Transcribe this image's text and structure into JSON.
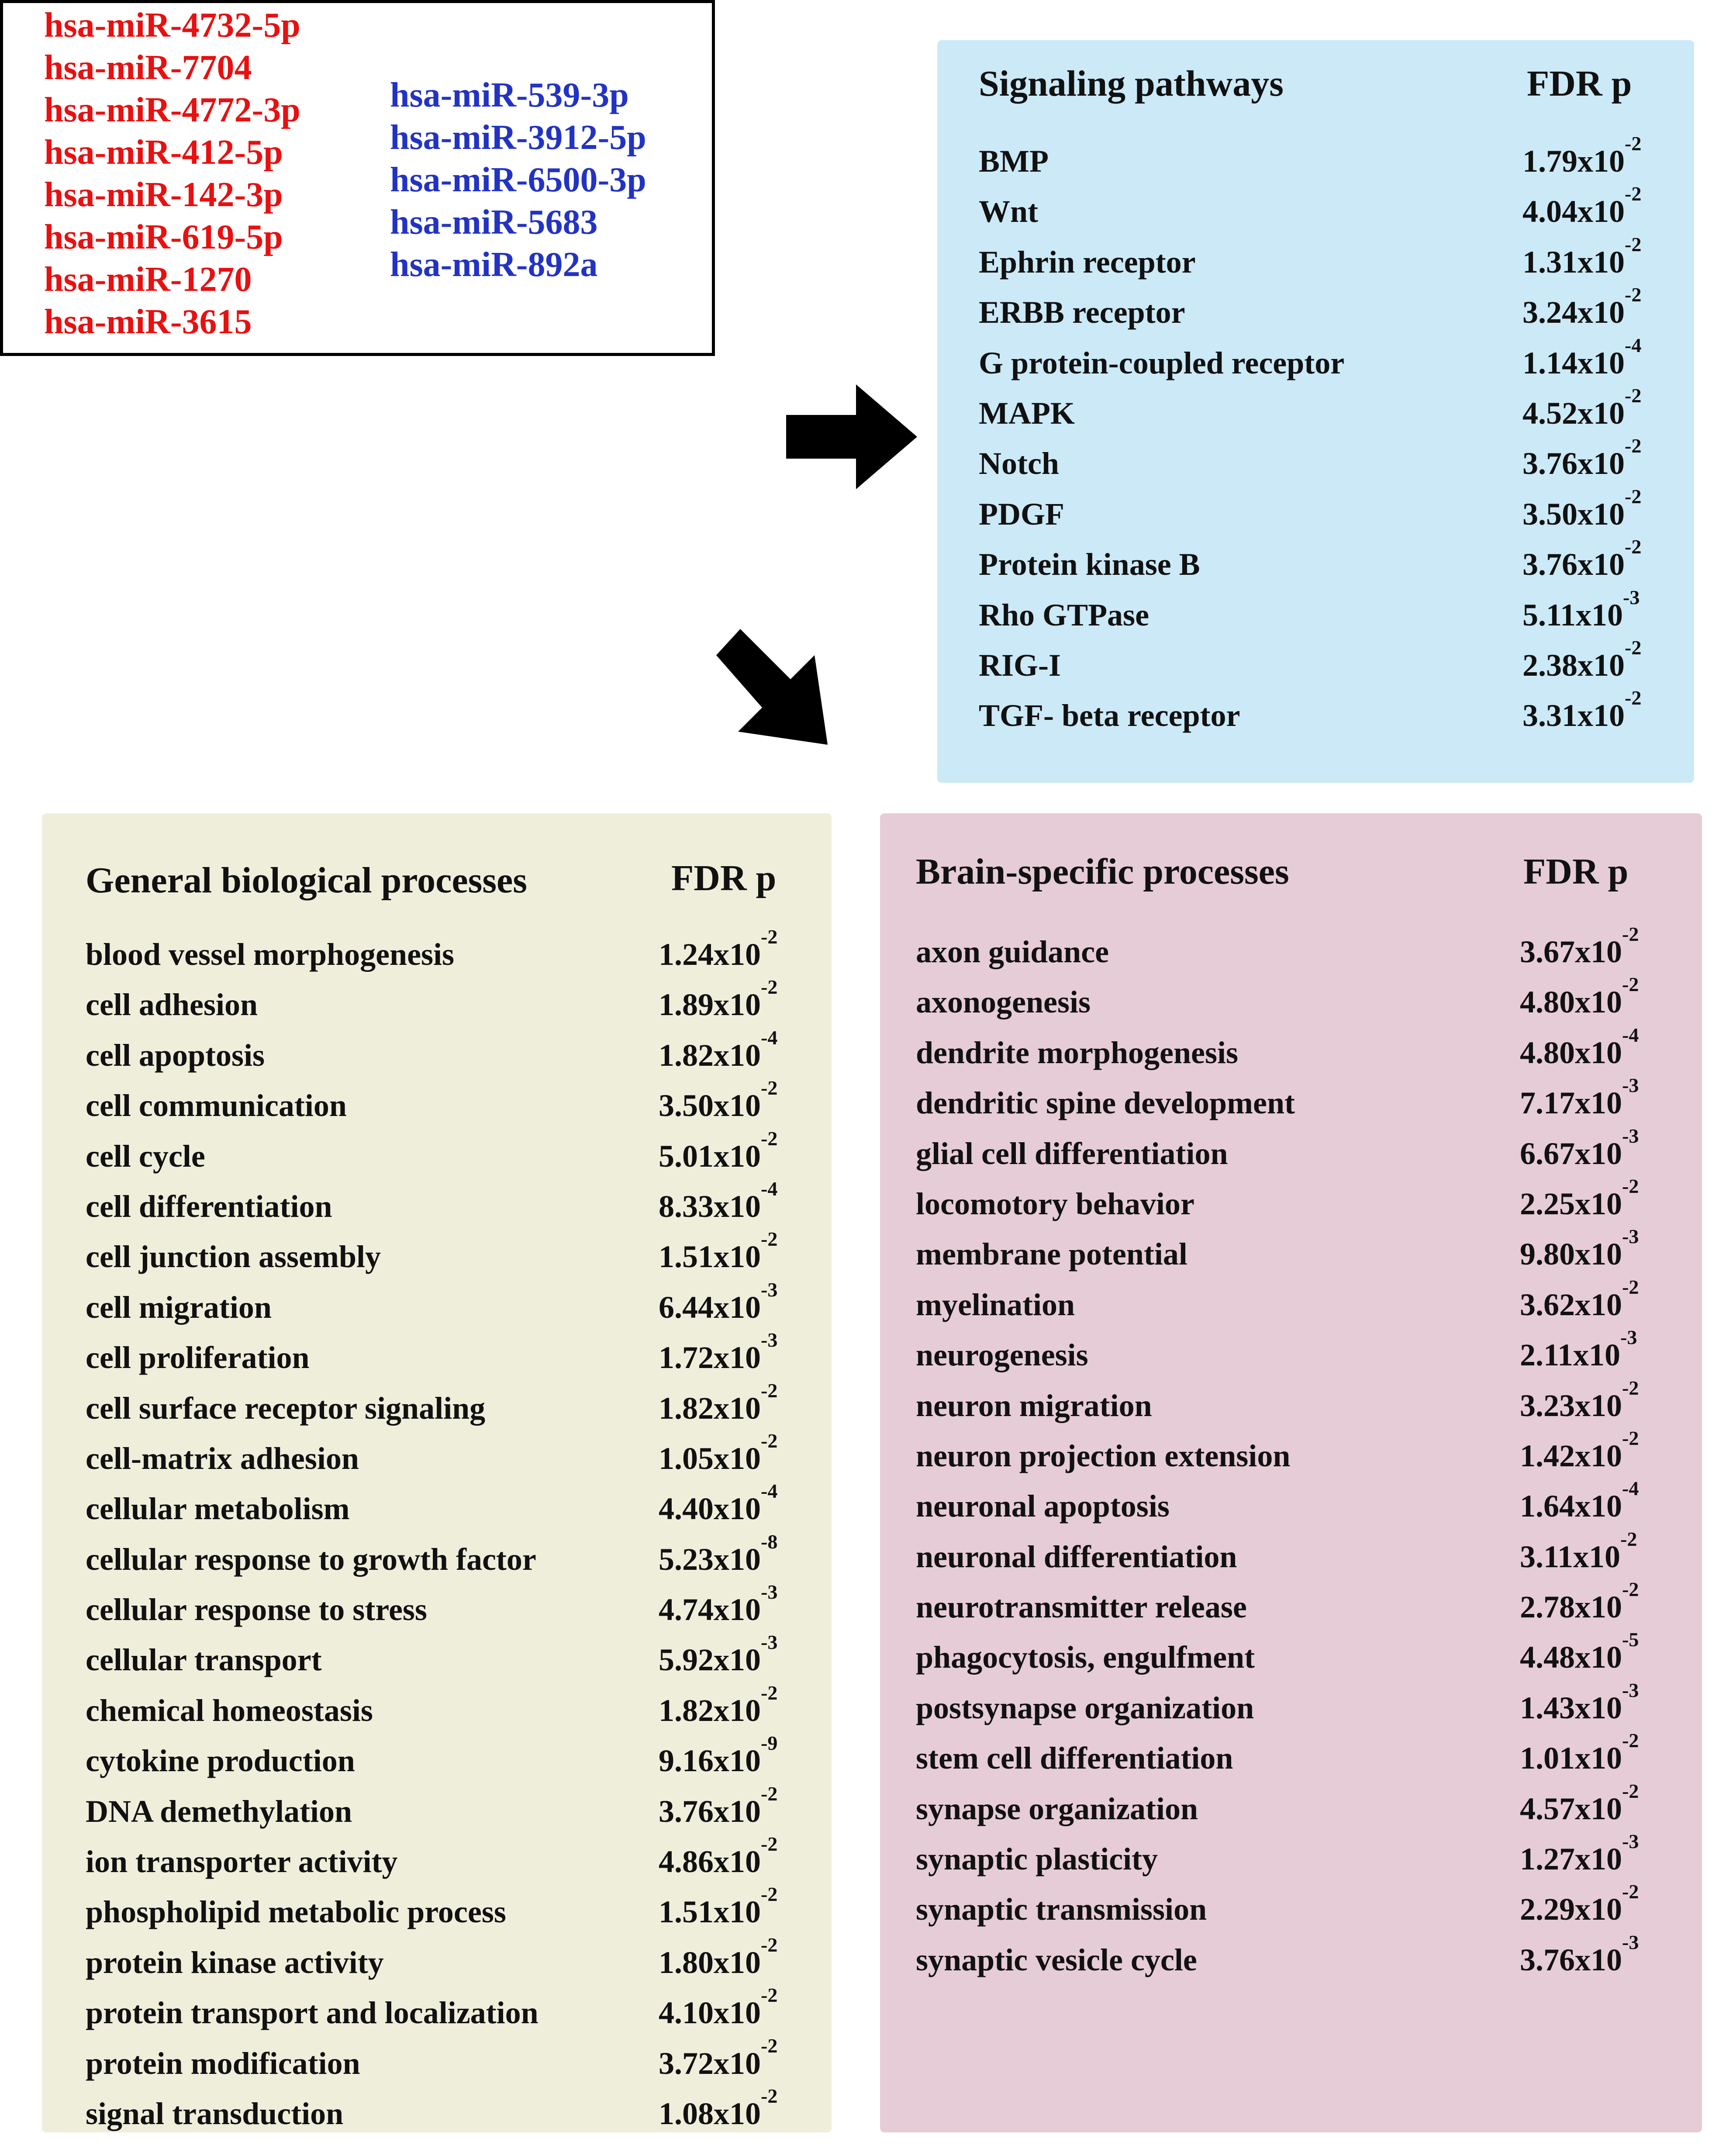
{
  "mirnas": {
    "red": [
      "hsa-miR-4732-5p",
      "hsa-miR-7704",
      "hsa-miR-4772-3p",
      "hsa-miR-412-5p",
      "hsa-miR-142-3p",
      "hsa-miR-619-5p",
      "hsa-miR-1270",
      "hsa-miR-3615"
    ],
    "blue": [
      "hsa-miR-539-3p",
      "hsa-miR-3912-5p",
      "hsa-miR-6500-3p",
      "hsa-miR-5683",
      "hsa-miR-892a"
    ],
    "red_color": "#e81010",
    "blue_color": "#2233c4"
  },
  "signaling": {
    "title": "Signaling pathways",
    "fdr_header": "FDR p",
    "color": "#cbe9f7",
    "rows": [
      {
        "name": "BMP",
        "mant": "1.79x10",
        "exp": "-2"
      },
      {
        "name": "Wnt",
        "mant": "4.04x10",
        "exp": "-2"
      },
      {
        "name": "Ephrin receptor",
        "mant": "1.31x10",
        "exp": "-2"
      },
      {
        "name": "ERBB receptor",
        "mant": "3.24x10",
        "exp": "-2"
      },
      {
        "name": "G protein-coupled  receptor",
        "mant": "1.14x10",
        "exp": "-4"
      },
      {
        "name": "MAPK",
        "mant": "4.52x10",
        "exp": "-2"
      },
      {
        "name": "Notch",
        "mant": "3.76x10",
        "exp": "-2"
      },
      {
        "name": "PDGF",
        "mant": "3.50x10",
        "exp": "-2"
      },
      {
        "name": "Protein  kinase B",
        "mant": "3.76x10",
        "exp": "-2"
      },
      {
        "name": "Rho GTPase",
        "mant": "5.11x10",
        "exp": "-3"
      },
      {
        "name": "RIG-I",
        "mant": "2.38x10",
        "exp": "-2"
      },
      {
        "name": "TGF- beta receptor",
        "mant": "3.31x10",
        "exp": "-2"
      }
    ]
  },
  "general": {
    "title": "General biological processes",
    "fdr_header": "FDR p",
    "color": "#efeedb",
    "rows": [
      {
        "name": "blood vessel morphogenesis",
        "mant": "1.24x10",
        "exp": "-2"
      },
      {
        "name": "cell adhesion",
        "mant": "1.89x10",
        "exp": "-2"
      },
      {
        "name": "cell apoptosis",
        "mant": "1.82x10",
        "exp": "-4"
      },
      {
        "name": "cell communication",
        "mant": "3.50x10",
        "exp": "-2"
      },
      {
        "name": "cell cycle",
        "mant": "5.01x10",
        "exp": "-2"
      },
      {
        "name": "cell differentiation",
        "mant": "8.33x10",
        "exp": "-4"
      },
      {
        "name": "cell junction assembly",
        "mant": "1.51x10",
        "exp": "-2"
      },
      {
        "name": "cell migration",
        "mant": "6.44x10",
        "exp": "-3"
      },
      {
        "name": "cell proliferation",
        "mant": "1.72x10",
        "exp": "-3"
      },
      {
        "name": "cell surface receptor signaling",
        "mant": "1.82x10",
        "exp": "-2"
      },
      {
        "name": "cell-matrix  adhesion",
        "mant": "1.05x10",
        "exp": "-2"
      },
      {
        "name": "cellular   metabolism",
        "mant": "4.40x10",
        "exp": "-4"
      },
      {
        "name": "cellular  response to growth factor",
        "mant": "5.23x10",
        "exp": "-8"
      },
      {
        "name": "cellular  response to stress",
        "mant": "4.74x10",
        "exp": "-3"
      },
      {
        "name": "cellular  transport",
        "mant": "5.92x10",
        "exp": "-3"
      },
      {
        "name": "chemical homeostasis",
        "mant": "1.82x10",
        "exp": "-2"
      },
      {
        "name": "cytokine production",
        "mant": "9.16x10",
        "exp": "-9"
      },
      {
        "name": "DNA demethylation",
        "mant": "3.76x10",
        "exp": "-2"
      },
      {
        "name": "ion transporter activity",
        "mant": "4.86x10",
        "exp": "-2"
      },
      {
        "name": "phospholipid metabolic process",
        "mant": "1.51x10",
        "exp": "-2"
      },
      {
        "name": "protein kinase activity",
        "mant": "1.80x10",
        "exp": "-2"
      },
      {
        "name": "protein transport and localization",
        "mant": "4.10x10",
        "exp": "-2"
      },
      {
        "name": "protein modification",
        "mant": "3.72x10",
        "exp": "-2"
      },
      {
        "name": "signal transduction",
        "mant": "1.08x10",
        "exp": "-2"
      }
    ]
  },
  "brain": {
    "title": "Brain-specific processes",
    "fdr_header": "FDR p",
    "color": "#e6ccd6",
    "rows": [
      {
        "name": "axon guidance",
        "mant": "3.67x10",
        "exp": "-2"
      },
      {
        "name": "axonogenesis",
        "mant": "4.80x10",
        "exp": "-2"
      },
      {
        "name": "dendrite morphogenesis",
        "mant": "4.80x10",
        "exp": "-4"
      },
      {
        "name": "dendritic spine development",
        "mant": "7.17x10",
        "exp": "-3"
      },
      {
        "name": "glial cell differentiation",
        "mant": "6.67x10",
        "exp": "-3"
      },
      {
        "name": "locomotory behavior",
        "mant": "2.25x10",
        "exp": "-2"
      },
      {
        "name": "membrane potential",
        "mant": "9.80x10",
        "exp": "-3"
      },
      {
        "name": "myelination",
        "mant": "3.62x10",
        "exp": "-2"
      },
      {
        "name": "neurogenesis",
        "mant": "2.11x10",
        "exp": "-3"
      },
      {
        "name": "neuron migration",
        "mant": "3.23x10",
        "exp": "-2"
      },
      {
        "name": "neuron projection extension",
        "mant": "1.42x10",
        "exp": "-2"
      },
      {
        "name": "neuronal apoptosis",
        "mant": "1.64x10",
        "exp": "-4"
      },
      {
        "name": "neuronal differentiation",
        "mant": "3.11x10",
        "exp": "-2"
      },
      {
        "name": "neurotransmitter release",
        "mant": "2.78x10",
        "exp": "-2"
      },
      {
        "name": "phagocytosis, engulfment",
        "mant": "4.48x10",
        "exp": "-5"
      },
      {
        "name": "postsynapse organization",
        "mant": "1.43x10",
        "exp": "-3"
      },
      {
        "name": "stem cell differentiation",
        "mant": "1.01x10",
        "exp": "-2"
      },
      {
        "name": "synapse organization",
        "mant": "4.57x10",
        "exp": "-2"
      },
      {
        "name": "synaptic plasticity",
        "mant": "1.27x10",
        "exp": "-3"
      },
      {
        "name": "synaptic transmission",
        "mant": "2.29x10",
        "exp": "-2"
      },
      {
        "name": "synaptic vesicle cycle",
        "mant": "3.76x10",
        "exp": "-3"
      }
    ]
  },
  "arrows": {
    "color": "#000000",
    "icon_right": "arrow-right-icon",
    "icon_diag": "arrow-down-right-icon"
  }
}
